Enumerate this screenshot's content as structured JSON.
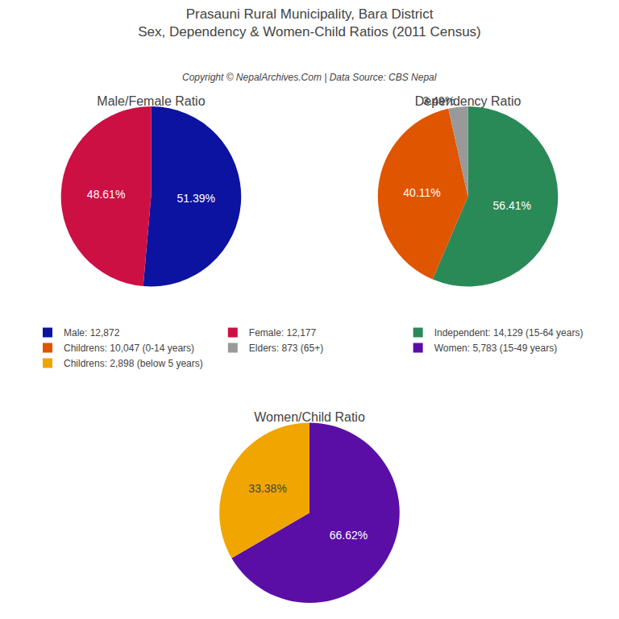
{
  "title": "Prasauni Rural Municipality, Bara District",
  "subtitle": "Sex, Dependency & Women-Child Ratios (2011 Census)",
  "annotations": [
    "Copyright © NepalArchives.Com | Data Source: CBS Nepal"
  ],
  "chart_data": [
    {
      "type": "pie",
      "title": "Male/Female Ratio",
      "categories": [
        "Male: 12,872",
        "Female: 12,177"
      ],
      "values": [
        51.39,
        48.61
      ],
      "value_labels": [
        "51.39%",
        "48.61%"
      ],
      "colors": [
        "#0c13a0",
        "#cc1044"
      ],
      "data_labels": true,
      "legend": "center"
    },
    {
      "type": "pie",
      "title": "Dependency Ratio",
      "categories": [
        "Independent: 14,129 (15-64 years)",
        "Childrens: 10,047 (0-14 years)",
        "Elders: 873 (65+)"
      ],
      "values": [
        56.41,
        40.11,
        3.49
      ],
      "value_labels": [
        "56.41%",
        "40.11%",
        "3.49%"
      ],
      "colors": [
        "#2a8a57",
        "#e05500",
        "#999999"
      ],
      "data_labels": true,
      "legend": "center"
    },
    {
      "type": "pie",
      "title": "Women/Child Ratio",
      "categories": [
        "Women: 5,783 (15-49 years)",
        "Childrens: 2,898 (below 5 years)"
      ],
      "values": [
        66.62,
        33.38
      ],
      "value_labels": [
        "66.62%",
        "33.38%"
      ],
      "colors": [
        "#5b0ea6",
        "#f0a500"
      ],
      "data_labels": true,
      "legend": "center"
    }
  ]
}
